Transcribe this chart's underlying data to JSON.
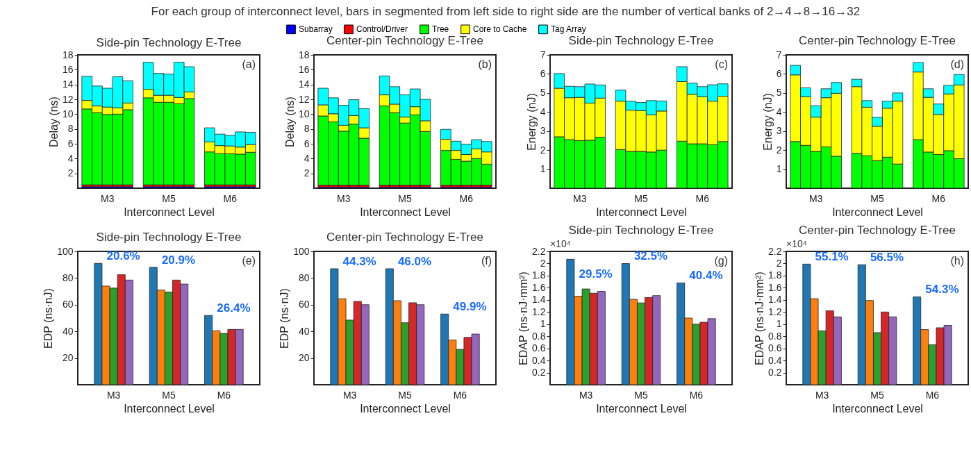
{
  "chart_data": [
    {
      "type": "other",
      "title": "For each group of interconnect level, bars in segmented from left side to right side are the number of vertical banks of 2→4→8→16→32"
    },
    {
      "type": "bar",
      "title": "Side-pin Technology E-Tree",
      "xlabel": "Interconnect Level",
      "ylabel": "Delay (ns)",
      "stacked": true,
      "legend": "top",
      "ylim": [
        0,
        18
      ],
      "yticks": [
        2,
        4,
        6,
        8,
        10,
        12,
        14,
        16,
        18
      ],
      "annotations": [
        "(a)"
      ],
      "categories": [
        null,
        null,
        "M3",
        null,
        null,
        null,
        null,
        null,
        "M5",
        null,
        null,
        null,
        null,
        null,
        "M6",
        null,
        null
      ],
      "series": [
        {
          "name": "Subarray",
          "color": "#0000ff",
          "values": [
            0.2,
            0.2,
            0.2,
            0.2,
            0.2,
            null,
            0.2,
            0.2,
            0.2,
            0.2,
            0.2,
            null,
            0.2,
            0.2,
            0.2,
            0.2,
            0.2
          ]
        },
        {
          "name": "Control/Driver",
          "color": "#ff0000",
          "values": [
            0.25,
            0.25,
            0.25,
            0.25,
            0.25,
            null,
            0.25,
            0.25,
            0.25,
            0.25,
            0.25,
            null,
            0.25,
            0.25,
            0.25,
            0.25,
            0.25
          ]
        },
        {
          "name": "Tree",
          "color": "#00ff00",
          "values": [
            10.25,
            9.75,
            9.5,
            9.55,
            10.15,
            null,
            11.75,
            11.15,
            11.15,
            10.95,
            11.65,
            null,
            4.45,
            4.2,
            4.2,
            4.15,
            4.4
          ]
        },
        {
          "name": "Core to Cache",
          "color": "#ffff00",
          "values": [
            1.15,
            0.9,
            1.0,
            0.85,
            0.9,
            null,
            1.15,
            0.95,
            0.95,
            0.85,
            0.9,
            null,
            1.35,
            1.1,
            1.05,
            0.95,
            1.05
          ]
        },
        {
          "name": "Tag Array",
          "color": "#00ffff",
          "values": [
            3.25,
            2.7,
            2.55,
            4.2,
            3.0,
            null,
            3.65,
            2.95,
            2.85,
            4.75,
            3.4,
            null,
            1.9,
            1.55,
            1.45,
            2.05,
            1.65
          ]
        }
      ]
    },
    {
      "type": "bar",
      "title": "Center-pin Technology E-Tree",
      "xlabel": "Interconnect Level",
      "ylabel": "Delay (ns)",
      "stacked": true,
      "ylim": [
        0,
        18
      ],
      "yticks": [
        2,
        4,
        6,
        8,
        10,
        12,
        14,
        16,
        18
      ],
      "annotations": [
        "(b)"
      ],
      "categories": [
        null,
        null,
        "M3",
        null,
        null,
        null,
        null,
        null,
        "M5",
        null,
        null,
        null,
        null,
        null,
        "M6",
        null,
        null
      ],
      "series": [
        {
          "color": "#0000ff",
          "values": [
            0.15,
            0.15,
            0.15,
            0.15,
            0.15,
            null,
            0.15,
            0.15,
            0.15,
            0.15,
            0.15,
            null,
            0.15,
            0.15,
            0.15,
            0.15,
            0.15
          ]
        },
        {
          "color": "#ff0000",
          "values": [
            0.25,
            0.25,
            0.25,
            0.25,
            0.25,
            null,
            0.25,
            0.25,
            0.25,
            0.25,
            0.25,
            null,
            0.25,
            0.25,
            0.25,
            0.25,
            0.25
          ]
        },
        {
          "color": "#00ff00",
          "values": [
            9.35,
            8.55,
            7.3,
            8.25,
            6.35,
            null,
            10.7,
            9.8,
            8.4,
            9.5,
            7.25,
            null,
            4.7,
            3.5,
            3.25,
            3.6,
            2.85
          ]
        },
        {
          "color": "#ffff00",
          "values": [
            1.5,
            1.1,
            0.8,
            1.15,
            1.4,
            null,
            1.5,
            1.15,
            0.8,
            1.1,
            1.45,
            null,
            1.5,
            1.2,
            0.9,
            1.3,
            1.65
          ]
        },
        {
          "color": "#00ffff",
          "values": [
            2.25,
            2.15,
            2.7,
            2.15,
            2.6,
            null,
            2.55,
            2.35,
            3.0,
            2.4,
            2.9,
            null,
            1.35,
            1.25,
            1.4,
            1.25,
            1.4
          ]
        }
      ]
    },
    {
      "type": "bar",
      "title": "Side-pin Technology E-Tree",
      "xlabel": "Interconnect Level",
      "ylabel": "Energy (nJ)",
      "stacked": true,
      "ylim": [
        0,
        7
      ],
      "yticks": [
        1,
        2,
        3,
        4,
        5,
        6,
        7
      ],
      "annotations": [
        "(c)"
      ],
      "categories": [
        null,
        null,
        "M3",
        null,
        null,
        null,
        null,
        null,
        "M5",
        null,
        null,
        null,
        null,
        null,
        "M6",
        null,
        null
      ],
      "series": [
        {
          "color": "#00ff00",
          "values": [
            2.7,
            2.55,
            2.5,
            2.52,
            2.68,
            null,
            2.03,
            1.93,
            1.93,
            1.9,
            2.0,
            null,
            2.47,
            2.33,
            2.33,
            2.28,
            2.45
          ]
        },
        {
          "color": "#ffff00",
          "values": [
            2.55,
            2.2,
            2.27,
            1.95,
            2.05,
            null,
            2.54,
            2.17,
            2.14,
            1.95,
            2.05,
            null,
            3.13,
            2.6,
            2.47,
            2.29,
            2.38
          ]
        },
        {
          "color": "#00ffff",
          "values": [
            0.77,
            0.6,
            0.56,
            1.0,
            0.69,
            null,
            0.58,
            0.47,
            0.43,
            0.75,
            0.53,
            null,
            0.78,
            0.59,
            0.53,
            0.86,
            0.65
          ]
        }
      ]
    },
    {
      "type": "bar",
      "title": "Center-pin Technology E-Tree",
      "xlabel": "Interconnect Level",
      "ylabel": "Energy (nJ)",
      "stacked": true,
      "ylim": [
        0,
        7
      ],
      "yticks": [
        1,
        2,
        3,
        4,
        5,
        6,
        7
      ],
      "annotations": [
        "(d)"
      ],
      "categories": [
        null,
        null,
        "M3",
        null,
        null,
        null,
        null,
        null,
        "M5",
        null,
        null,
        null,
        null,
        null,
        "M6",
        null,
        null
      ],
      "series": [
        {
          "color": "#00ff00",
          "values": [
            2.45,
            2.25,
            1.93,
            2.17,
            1.68,
            null,
            1.83,
            1.7,
            1.45,
            1.63,
            1.27,
            null,
            2.55,
            1.9,
            1.77,
            1.97,
            1.55
          ]
        },
        {
          "color": "#ffff00",
          "values": [
            3.5,
            2.55,
            1.8,
            2.58,
            3.3,
            null,
            3.5,
            2.55,
            1.8,
            2.57,
            3.3,
            null,
            3.55,
            2.87,
            2.1,
            2.98,
            3.87
          ]
        },
        {
          "color": "#00ffff",
          "values": [
            0.5,
            0.47,
            0.6,
            0.47,
            0.57,
            null,
            0.39,
            0.35,
            0.47,
            0.37,
            0.43,
            null,
            0.5,
            0.45,
            0.55,
            0.45,
            0.55
          ]
        }
      ]
    },
    {
      "type": "bar",
      "title": "Side-pin Technology E-Tree",
      "xlabel": "Interconnect Level",
      "ylabel": "EDP (ns·nJ)",
      "ylim": [
        0,
        100
      ],
      "yticks": [
        20,
        40,
        60,
        80,
        100
      ],
      "categories": [
        "M3",
        "M5",
        "M6"
      ],
      "annotations": [
        "(e)",
        "20.6%",
        "20.9%",
        "26.4%"
      ],
      "series": [
        {
          "color": "#1f77b4",
          "values": [
            91,
            88,
            52
          ]
        },
        {
          "color": "#ff7f0e",
          "values": [
            74,
            71,
            40.5
          ]
        },
        {
          "color": "#2ca02c",
          "values": [
            72.5,
            69.5,
            38.5
          ]
        },
        {
          "color": "#d62728",
          "values": [
            82.5,
            78.5,
            41.5
          ]
        },
        {
          "color": "#9467bd",
          "values": [
            78.5,
            75.5,
            41.5
          ]
        }
      ]
    },
    {
      "type": "bar",
      "title": "Center-pin Technology E-Tree",
      "xlabel": "Interconnect Level",
      "ylabel": "EDP (ns·nJ)",
      "ylim": [
        0,
        100
      ],
      "yticks": [
        20,
        40,
        60,
        80,
        100
      ],
      "categories": [
        "M3",
        "M5",
        "M6"
      ],
      "annotations": [
        "(f)",
        "44.3%",
        "46.0%",
        "49.9%"
      ],
      "series": [
        {
          "color": "#1f77b4",
          "values": [
            87,
            87,
            53
          ]
        },
        {
          "color": "#ff7f0e",
          "values": [
            64.5,
            63,
            33.5
          ]
        },
        {
          "color": "#2ca02c",
          "values": [
            48.5,
            46.5,
            26.5
          ]
        },
        {
          "color": "#d62728",
          "values": [
            62.5,
            61.5,
            35.5
          ]
        },
        {
          "color": "#9467bd",
          "values": [
            60,
            60,
            38
          ]
        }
      ]
    },
    {
      "type": "bar",
      "title": "Side-pin Technology E-Tree",
      "xlabel": "Interconnect Level",
      "ylabel": "EDAP (ns·nJ·mm²)",
      "ylim": [
        0,
        2.2
      ],
      "yticks": [
        0.2,
        0.4,
        0.6,
        0.8,
        1,
        1.2,
        1.4,
        1.6,
        1.8,
        2,
        2.2
      ],
      "categories": [
        "M3",
        "M5",
        "M6"
      ],
      "annotations": [
        "(g)",
        "×10⁴",
        "29.5%",
        "32.5%",
        "40.4%"
      ],
      "series": [
        {
          "color": "#1f77b4",
          "values": [
            2.07,
            2.0,
            1.68
          ]
        },
        {
          "color": "#ff7f0e",
          "values": [
            1.46,
            1.41,
            1.1
          ]
        },
        {
          "color": "#2ca02c",
          "values": [
            1.58,
            1.35,
            1.0
          ]
        },
        {
          "color": "#d62728",
          "values": [
            1.51,
            1.44,
            1.03
          ]
        },
        {
          "color": "#9467bd",
          "values": [
            1.54,
            1.47,
            1.09
          ]
        }
      ]
    },
    {
      "type": "bar",
      "title": "Center-pin Technology E-Tree",
      "xlabel": "Interconnect Level",
      "ylabel": "EDAP (ns·nJ·mm²)",
      "ylim": [
        0,
        2.2
      ],
      "yticks": [
        0.2,
        0.4,
        0.6,
        0.8,
        1,
        1.2,
        1.4,
        1.6,
        1.8,
        2,
        2.2
      ],
      "categories": [
        "M3",
        "M5",
        "M6"
      ],
      "annotations": [
        "(h)",
        "×10⁴",
        "55.1%",
        "56.5%",
        "54.3%"
      ],
      "series": [
        {
          "color": "#1f77b4",
          "values": [
            1.99,
            1.98,
            1.45
          ]
        },
        {
          "color": "#ff7f0e",
          "values": [
            1.42,
            1.39,
            0.91
          ]
        },
        {
          "color": "#2ca02c",
          "values": [
            0.89,
            0.86,
            0.66
          ]
        },
        {
          "color": "#d62728",
          "values": [
            1.22,
            1.2,
            0.94
          ]
        },
        {
          "color": "#9467bd",
          "values": [
            1.12,
            1.12,
            0.98
          ]
        }
      ]
    }
  ]
}
